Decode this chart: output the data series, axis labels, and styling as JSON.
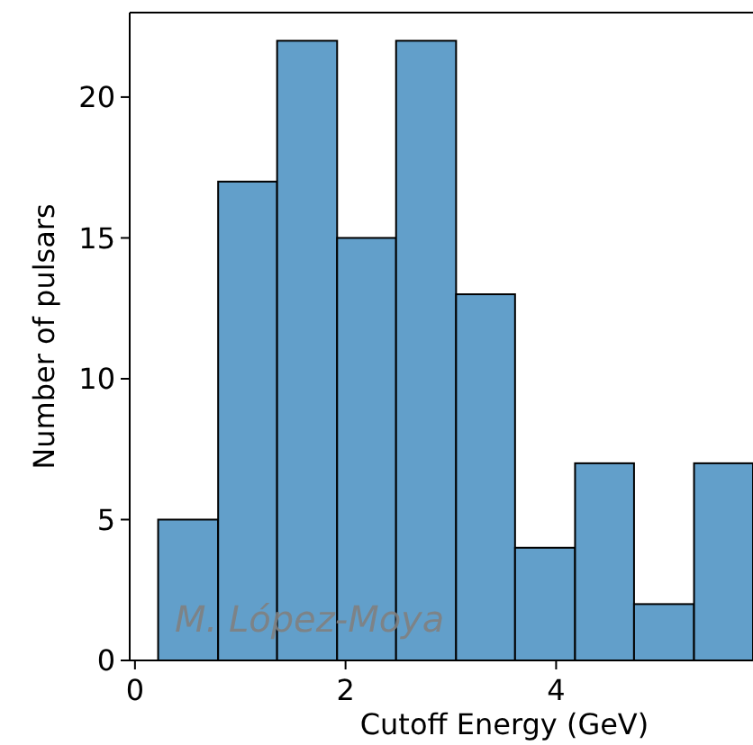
{
  "chart_data": {
    "type": "histogram",
    "xlabel": "Cutoff Energy (GeV)",
    "ylabel": "Number of pulsars",
    "bins": [
      0.22,
      0.79,
      1.35,
      1.92,
      2.48,
      3.05,
      3.61,
      4.18,
      4.74,
      5.31,
      5.87
    ],
    "values": [
      5,
      17,
      22,
      15,
      22,
      13,
      4,
      7,
      2,
      7
    ],
    "color": "#629fca",
    "xlim": [
      -0.05,
      5.87
    ],
    "ylim": [
      0,
      23
    ],
    "xticks": [
      0,
      2,
      4
    ],
    "yticks": [
      0,
      5,
      10,
      15,
      20
    ],
    "grid": false,
    "annotations": [
      "M. López-Moya"
    ]
  }
}
